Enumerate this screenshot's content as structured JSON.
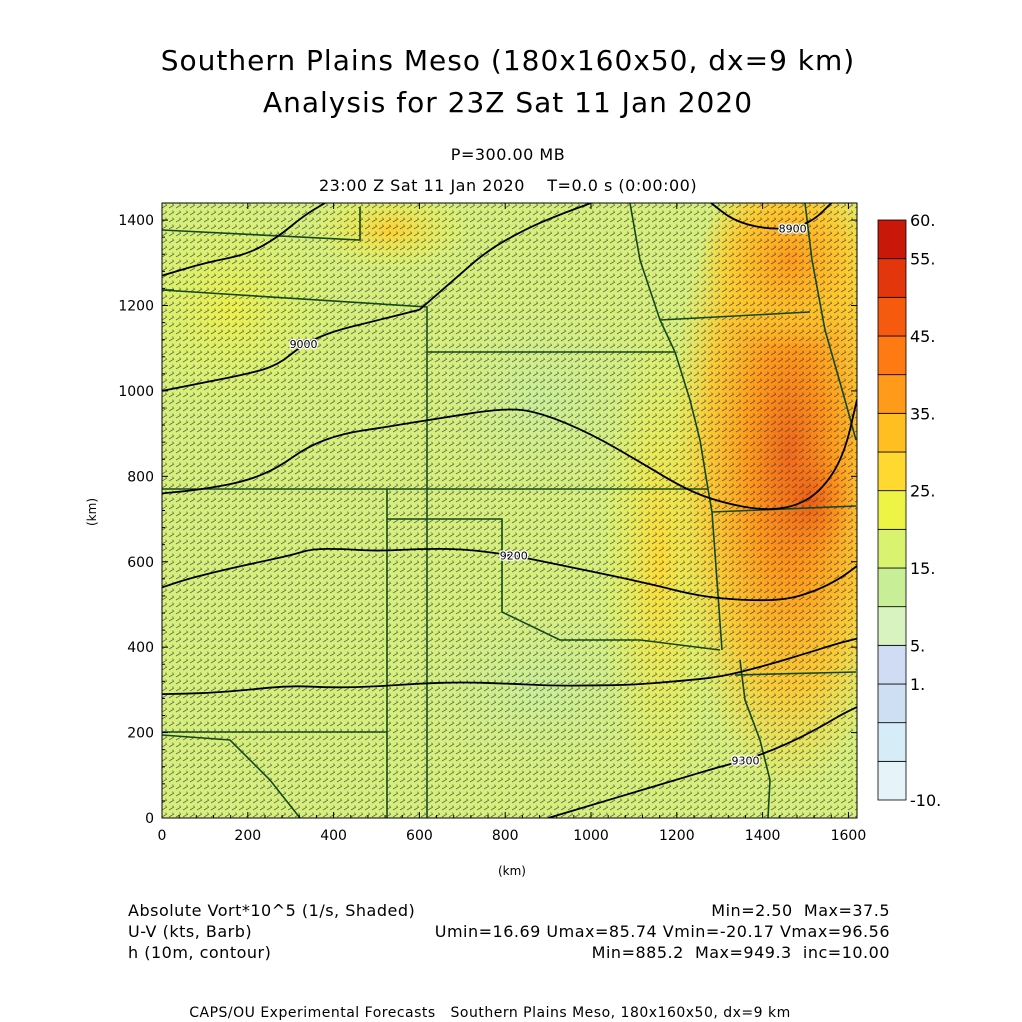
{
  "header": {
    "title1": "Southern Plains Meso (180x160x50, dx=9 km)",
    "title2": "Analysis for 23Z Sat 11 Jan 2020",
    "level": "P=300.00 MB",
    "time": "23:00 Z Sat 11 Jan 2020    T=0.0 s (0:00:00)"
  },
  "chart_data": {
    "type": "heatmap",
    "xlabel": "(km)",
    "ylabel": "(km)",
    "xlim": [
      0,
      1620
    ],
    "ylim": [
      0,
      1440
    ],
    "xticks": [
      0,
      200,
      400,
      600,
      800,
      1000,
      1200,
      1400,
      1600
    ],
    "yticks": [
      0,
      200,
      400,
      600,
      800,
      1000,
      1200,
      1400
    ],
    "colorbar": {
      "levels": [
        -10,
        -5,
        0,
        1,
        5,
        10,
        15,
        20,
        25,
        30,
        35,
        40,
        45,
        50,
        55,
        60
      ],
      "labels": [
        {
          "value": 60,
          "text": "60."
        },
        {
          "value": 55,
          "text": "55."
        },
        {
          "value": 45,
          "text": "45."
        },
        {
          "value": 35,
          "text": "35."
        },
        {
          "value": 25,
          "text": "25."
        },
        {
          "value": 15,
          "text": "15."
        },
        {
          "value": 5,
          "text": "5."
        },
        {
          "value": 1,
          "text": "1."
        },
        {
          "value": -10,
          "text": "-10."
        }
      ],
      "colors": [
        "#e6f4fa",
        "#d6ecf7",
        "#cde0f3",
        "#d0dcf4",
        "#d8f3c0",
        "#c8ee98",
        "#d9f270",
        "#eef445",
        "#ffd92f",
        "#ffbf20",
        "#ff9a1a",
        "#ff7a12",
        "#f55a0e",
        "#e4360c",
        "#c9180a"
      ]
    },
    "contours": [
      {
        "label": "9200",
        "points": [
          [
            0,
            540
          ],
          [
            60,
            560
          ],
          [
            140,
            580
          ],
          [
            230,
            600
          ],
          [
            300,
            615
          ],
          [
            350,
            630
          ],
          [
            420,
            630
          ],
          [
            500,
            625
          ],
          [
            600,
            630
          ],
          [
            700,
            630
          ],
          [
            820,
            615
          ],
          [
            940,
            590
          ],
          [
            1060,
            565
          ],
          [
            1150,
            545
          ],
          [
            1250,
            520
          ],
          [
            1350,
            510
          ],
          [
            1450,
            510
          ],
          [
            1520,
            530
          ],
          [
            1580,
            560
          ],
          [
            1620,
            590
          ]
        ]
      },
      {
        "label": "",
        "points": [
          [
            0,
            290
          ],
          [
            100,
            292
          ],
          [
            200,
            300
          ],
          [
            300,
            310
          ],
          [
            400,
            305
          ],
          [
            500,
            308
          ],
          [
            600,
            315
          ],
          [
            700,
            318
          ],
          [
            800,
            315
          ],
          [
            900,
            310
          ],
          [
            1000,
            310
          ],
          [
            1100,
            312
          ],
          [
            1200,
            320
          ],
          [
            1300,
            330
          ],
          [
            1400,
            355
          ],
          [
            1500,
            385
          ],
          [
            1580,
            410
          ],
          [
            1620,
            420
          ]
        ]
      },
      {
        "label": "9300",
        "points": [
          [
            900,
            0
          ],
          [
            1000,
            30
          ],
          [
            1100,
            60
          ],
          [
            1200,
            90
          ],
          [
            1300,
            120
          ],
          [
            1360,
            135
          ],
          [
            1450,
            170
          ],
          [
            1530,
            210
          ],
          [
            1580,
            240
          ],
          [
            1620,
            260
          ]
        ]
      },
      {
        "label": "",
        "points": [
          [
            0,
            760
          ],
          [
            100,
            770
          ],
          [
            200,
            790
          ],
          [
            270,
            820
          ],
          [
            340,
            870
          ],
          [
            420,
            900
          ],
          [
            520,
            915
          ],
          [
            640,
            935
          ],
          [
            800,
            960
          ],
          [
            880,
            950
          ],
          [
            1000,
            900
          ],
          [
            1120,
            830
          ],
          [
            1220,
            770
          ],
          [
            1300,
            740
          ],
          [
            1400,
            720
          ],
          [
            1480,
            730
          ],
          [
            1540,
            770
          ],
          [
            1590,
            850
          ],
          [
            1620,
            980
          ]
        ]
      },
      {
        "label": "9000",
        "points": [
          [
            0,
            1000
          ],
          [
            100,
            1020
          ],
          [
            200,
            1040
          ],
          [
            270,
            1060
          ],
          [
            330,
            1110
          ],
          [
            400,
            1140
          ],
          [
            480,
            1160
          ],
          [
            600,
            1190
          ]
        ]
      },
      {
        "label": "",
        "points": [
          [
            600,
            1190
          ],
          [
            680,
            1260
          ],
          [
            760,
            1330
          ],
          [
            850,
            1380
          ],
          [
            920,
            1410
          ],
          [
            1000,
            1440
          ]
        ]
      },
      {
        "label": "",
        "points": [
          [
            0,
            1270
          ],
          [
            100,
            1300
          ],
          [
            200,
            1320
          ],
          [
            270,
            1360
          ],
          [
            330,
            1410
          ],
          [
            380,
            1440
          ]
        ]
      },
      {
        "label": "8900",
        "points": [
          [
            1280,
            1440
          ],
          [
            1330,
            1400
          ],
          [
            1400,
            1380
          ],
          [
            1470,
            1380
          ],
          [
            1520,
            1400
          ],
          [
            1560,
            1440
          ]
        ]
      }
    ]
  },
  "footer": {
    "left1": "Absolute Vort*10^5 (1/s, Shaded)",
    "left2": "U-V (kts, Barb)",
    "left3": "h (10m, contour)",
    "right1": "Min=2.50  Max=37.5",
    "right2": "Umin=16.69 Umax=85.74 Vmin=-20.17 Vmax=96.56",
    "right3": "Min=885.2  Max=949.3  inc=10.00",
    "credit": "CAPS/OU Experimental Forecasts   Southern Plains Meso, 180x160x50, dx=9 km"
  },
  "colors": {
    "contour": "#000000",
    "border": "#14491f",
    "barb": "#3a3a3a"
  }
}
